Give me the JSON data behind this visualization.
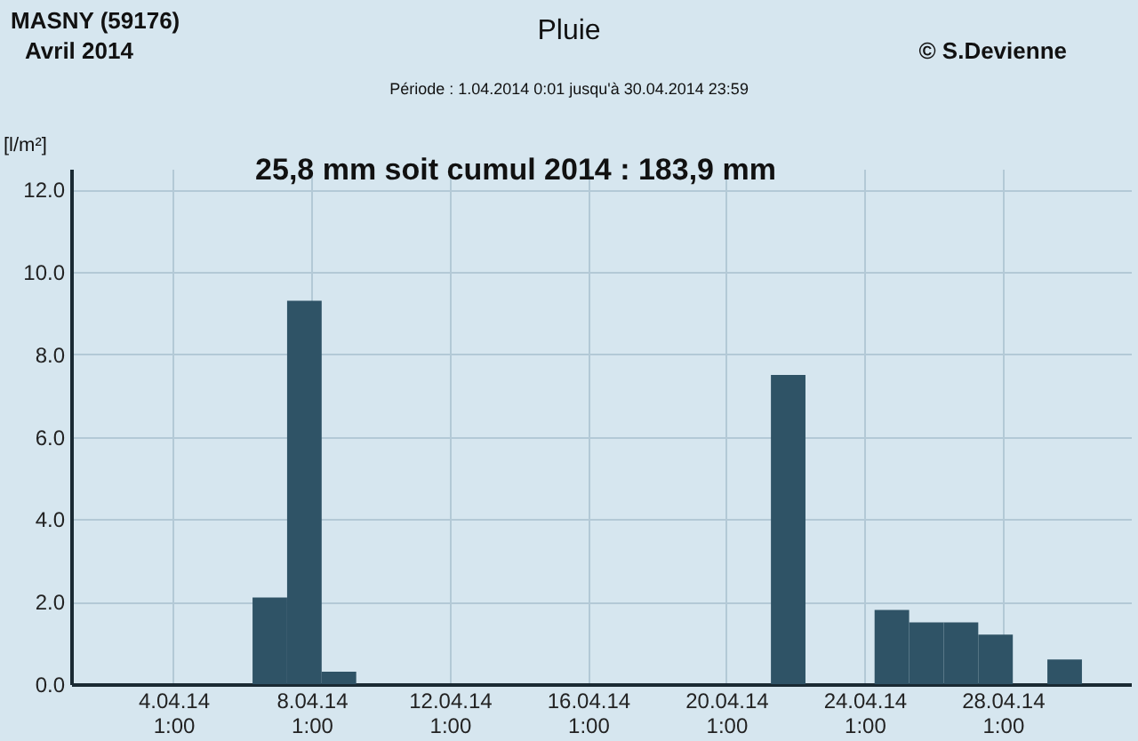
{
  "chart_data": {
    "type": "bar",
    "title": "Pluie",
    "subtitle": "25,8 mm  soit cumul 2014 : 183,9 mm",
    "annotations": [
      "MASNY (59176)",
      "Avril  2014",
      "© S.Devienne",
      "Période :  1.04.2014  0:01  jusqu'à 30.04.2014  23:59"
    ],
    "ylabel": "[l/m²]",
    "x": [
      "2014-04-06T20:00",
      "2014-04-07T20:00",
      "2014-04-08T20:00",
      "2014-04-21T20:00",
      "2014-04-24T20:00",
      "2014-04-25T20:00",
      "2014-04-26T20:00",
      "2014-04-27T20:00",
      "2014-04-29T20:00"
    ],
    "values": [
      2.1,
      9.3,
      0.3,
      7.5,
      1.8,
      1.5,
      1.5,
      1.2,
      0.6
    ],
    "color": "#2f5366",
    "xlim": [
      "2014-04-01T02:00",
      "2014-05-01T18:00"
    ],
    "xticks": [
      {
        "value": "2014-04-04T01:00",
        "label": "4.04.14 1:00"
      },
      {
        "value": "2014-04-08T01:00",
        "label": "8.04.14 1:00"
      },
      {
        "value": "2014-04-12T01:00",
        "label": "12.04.14 1:00"
      },
      {
        "value": "2014-04-16T01:00",
        "label": "16.04.14 1:00"
      },
      {
        "value": "2014-04-20T01:00",
        "label": "20.04.14 1:00"
      },
      {
        "value": "2014-04-24T01:00",
        "label": "24.04.14 1:00"
      },
      {
        "value": "2014-04-28T01:00",
        "label": "28.04.14 1:00"
      }
    ],
    "ylim": [
      0,
      12.5
    ],
    "yticks": [
      {
        "value": 0,
        "label": "0.0"
      },
      {
        "value": 2,
        "label": "2.0"
      },
      {
        "value": 4,
        "label": "4.0"
      },
      {
        "value": 6,
        "label": "6.0"
      },
      {
        "value": 8,
        "label": "8.0"
      },
      {
        "value": 10,
        "label": "10.0"
      },
      {
        "value": 12,
        "label": "12.0"
      }
    ],
    "grid": true
  }
}
